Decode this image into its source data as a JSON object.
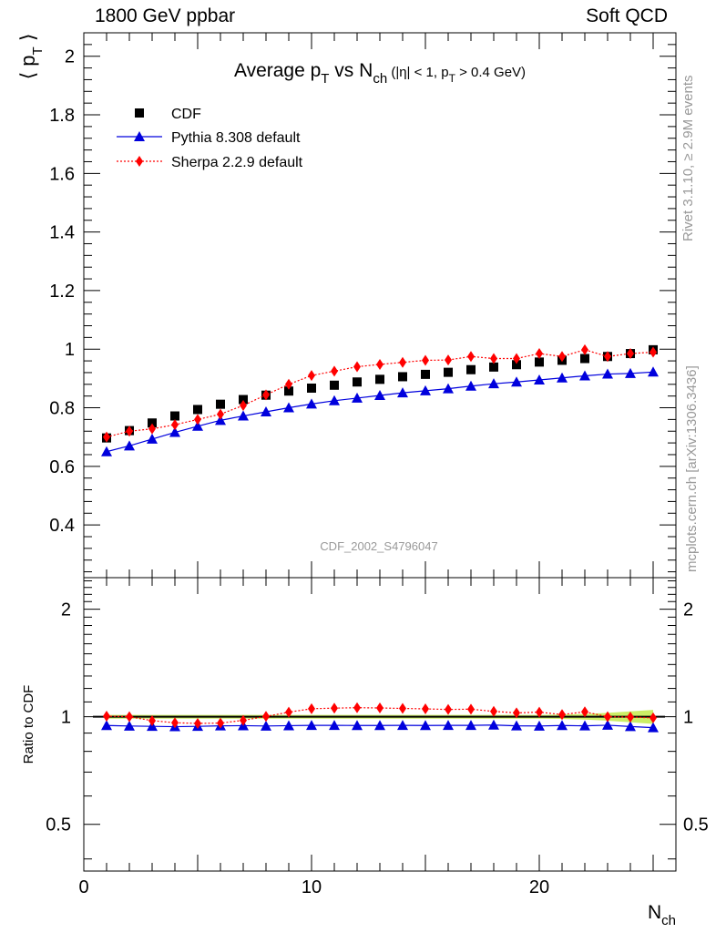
{
  "header": {
    "left": "1800 GeV ppbar",
    "right": "Soft QCD"
  },
  "side_labels": {
    "rivet": "Rivet 3.1.10, ≥ 2.9M events",
    "mcplots": "mcplots.cern.ch [arXiv:1306.3436]"
  },
  "chart_data": [
    {
      "type": "scatter",
      "title": "Average pT vs Nch (|η| < 1, pT > 0.4 GeV)",
      "title_parts": {
        "main_a": "Average p",
        "main_sub": "T",
        "main_b": " vs N",
        "main_sub2": "ch",
        "cut_a": " (|η| < 1, p",
        "cut_sub": "T",
        "cut_b": " > 0.4 GeV)"
      },
      "ylabel": "⟨ pT ⟩",
      "ylabel_parts": {
        "open": "⟨ p",
        "sub": "T",
        "close": " ⟩"
      },
      "analysis_id": "CDF_2002_S4796047",
      "xlim": [
        0,
        26
      ],
      "ylim": [
        0.22,
        2.08
      ],
      "yticks": [
        "0.4",
        "0.6",
        "0.8",
        "1",
        "1.2",
        "1.4",
        "1.6",
        "1.8",
        "2"
      ],
      "x": [
        1,
        2,
        3,
        4,
        5,
        6,
        7,
        8,
        9,
        10,
        11,
        12,
        13,
        14,
        15,
        16,
        17,
        18,
        19,
        20,
        21,
        22,
        23,
        24,
        25
      ],
      "series": [
        {
          "name": "CDF",
          "color": "#000000",
          "marker": "square",
          "values": [
            0.697,
            0.722,
            0.748,
            0.772,
            0.794,
            0.812,
            0.828,
            0.843,
            0.857,
            0.867,
            0.877,
            0.888,
            0.897,
            0.906,
            0.914,
            0.921,
            0.93,
            0.939,
            0.947,
            0.956,
            0.962,
            0.968,
            0.975,
            0.985,
            0.998
          ]
        },
        {
          "name": "Pythia 8.308 default",
          "color": "#0000dd",
          "marker": "triangle",
          "line": "solid",
          "values": [
            0.65,
            0.67,
            0.693,
            0.716,
            0.737,
            0.757,
            0.772,
            0.786,
            0.8,
            0.813,
            0.824,
            0.833,
            0.842,
            0.851,
            0.858,
            0.865,
            0.874,
            0.882,
            0.888,
            0.895,
            0.902,
            0.909,
            0.915,
            0.917,
            0.922
          ]
        },
        {
          "name": "Sherpa 2.2.9 default",
          "color": "#ff0000",
          "marker": "diamond",
          "line": "dotted",
          "values": [
            0.7,
            0.72,
            0.728,
            0.742,
            0.76,
            0.778,
            0.808,
            0.844,
            0.88,
            0.91,
            0.925,
            0.94,
            0.948,
            0.955,
            0.962,
            0.963,
            0.975,
            0.968,
            0.968,
            0.985,
            0.975,
            0.998,
            0.975,
            0.985,
            0.99
          ]
        }
      ]
    },
    {
      "type": "scatter",
      "ylabel": "Ratio to CDF",
      "xlabel": "Nch",
      "xlabel_parts": {
        "main": "N",
        "sub": "ch"
      },
      "xlim": [
        0,
        26
      ],
      "xticks": [
        "0",
        "10",
        "20"
      ],
      "ylim": [
        0.37,
        2.45
      ],
      "yticks": [
        "0.5",
        "1",
        "2"
      ],
      "x": [
        1,
        2,
        3,
        4,
        5,
        6,
        7,
        8,
        9,
        10,
        11,
        12,
        13,
        14,
        15,
        16,
        17,
        18,
        19,
        20,
        21,
        22,
        23,
        24,
        25
      ],
      "band_color": "#ccee66",
      "reference": 1,
      "series": [
        {
          "name": "Pythia 8.308 default",
          "color": "#0000dd",
          "marker": "triangle",
          "values": [
            0.945,
            0.942,
            0.94,
            0.938,
            0.94,
            0.943,
            0.944,
            0.942,
            0.944,
            0.946,
            0.946,
            0.945,
            0.945,
            0.946,
            0.945,
            0.946,
            0.946,
            0.948,
            0.943,
            0.942,
            0.945,
            0.943,
            0.947,
            0.939,
            0.932
          ]
        },
        {
          "name": "Sherpa 2.2.9 default",
          "color": "#ff0000",
          "marker": "diamond",
          "values": [
            1.004,
            1.0,
            0.975,
            0.962,
            0.958,
            0.96,
            0.977,
            1.002,
            1.03,
            1.053,
            1.057,
            1.06,
            1.058,
            1.055,
            1.052,
            1.048,
            1.05,
            1.035,
            1.025,
            1.03,
            1.014,
            1.032,
            1.0,
            0.998,
            0.993
          ]
        }
      ]
    }
  ]
}
